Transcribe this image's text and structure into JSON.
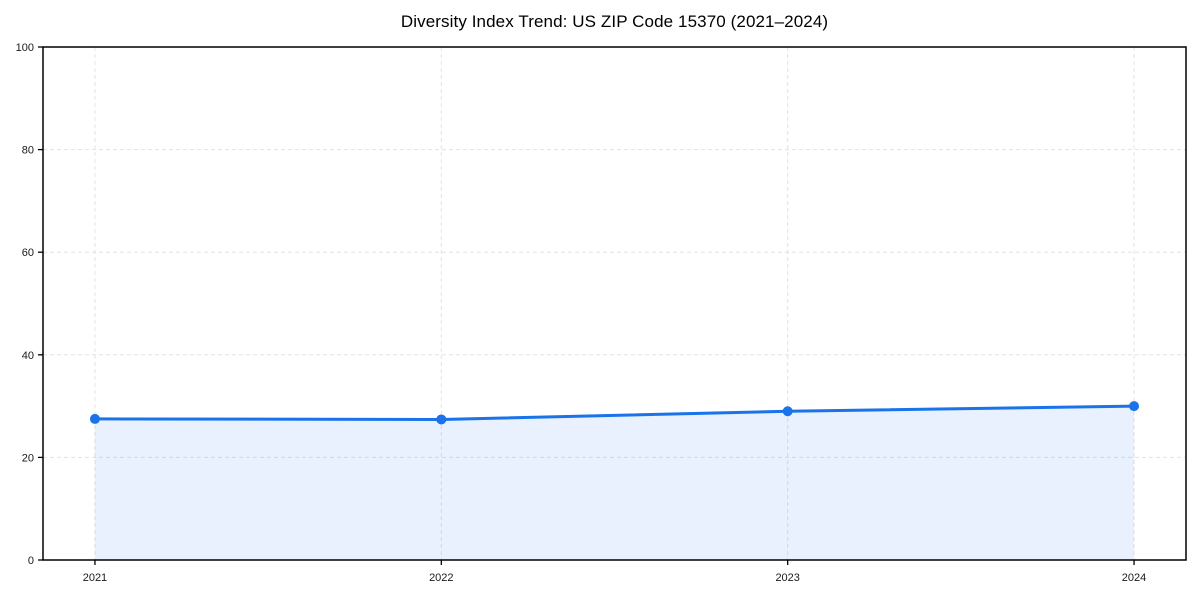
{
  "chart_data": {
    "type": "line",
    "title": "Diversity Index Trend: US ZIP Code 15370 (2021–2024)",
    "x": [
      "2021",
      "2022",
      "2023",
      "2024"
    ],
    "series": [
      {
        "name": "Diversity Index",
        "values": [
          27.5,
          27.4,
          29.0,
          30.0
        ]
      }
    ],
    "xlabel": "",
    "ylabel": "",
    "ylim": [
      0,
      100
    ],
    "yticks": [
      0,
      20,
      40,
      60,
      80,
      100
    ],
    "grid": "dashed-both",
    "legend": "none",
    "line_color": "#1a73e8",
    "marker": "circle",
    "marker_color": "#1a73e8",
    "fill_color": "#1a73e8",
    "fill_opacity": 0.1,
    "grid_color": "#e2e2e2",
    "spine_color": "#000000",
    "background_color": "#ffffff"
  }
}
